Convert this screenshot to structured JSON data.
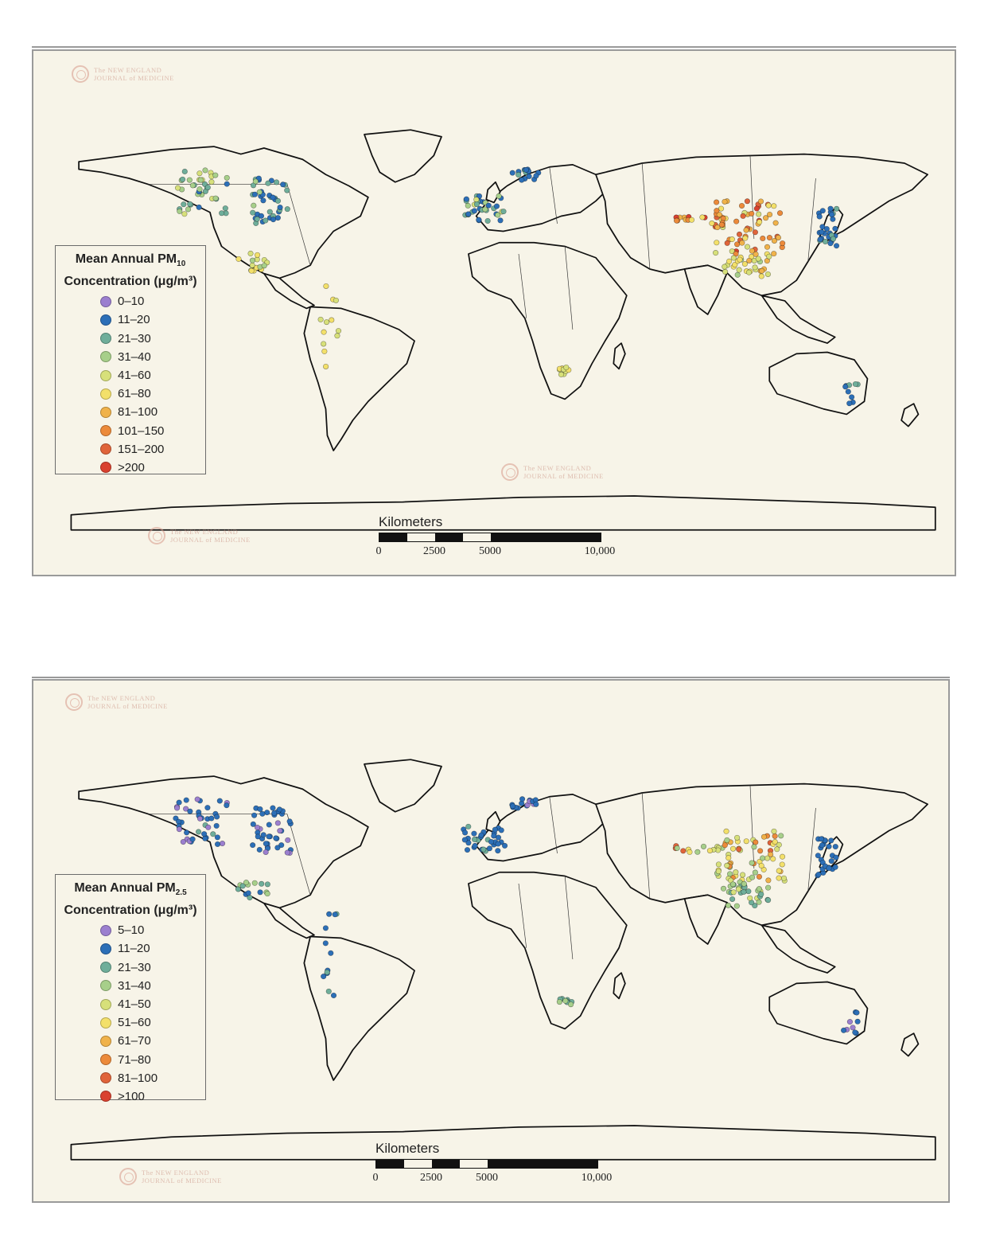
{
  "colors": {
    "background": "#f7f4e8",
    "coastline": "#111111",
    "classes": [
      "#9b7fcf",
      "#2c6fb7",
      "#6fae9a",
      "#a7cf8a",
      "#d7e07a",
      "#f3e06a",
      "#f0b24a",
      "#ec8a3a",
      "#e0643a",
      "#d9412f"
    ]
  },
  "logo": {
    "line1": "The NEW ENGLAND",
    "line2": "JOURNAL of MEDICINE"
  },
  "maps": [
    {
      "legend_title_line1": "Mean Annual PM",
      "legend_title_sub": "10",
      "legend_title_line2": "Concentration (μg/m³)",
      "legend_items": [
        "0–10",
        "11–20",
        "21–30",
        "31–40",
        "41–60",
        "61–80",
        "81–100",
        "101–150",
        "151–200",
        ">200"
      ],
      "scale": {
        "title": "Kilometers",
        "labels": [
          "0",
          "2500",
          "5000",
          "10,000"
        ]
      },
      "regions": [
        {
          "name": "western-us",
          "levels": [
            3,
            2,
            4,
            2,
            3,
            4,
            2,
            3,
            2,
            4,
            1,
            3,
            2,
            3
          ]
        },
        {
          "name": "eastern-us",
          "levels": [
            1,
            2,
            1,
            2,
            1,
            2,
            1,
            1,
            2,
            2,
            1,
            3,
            1,
            2
          ]
        },
        {
          "name": "mexico",
          "levels": [
            4,
            5,
            4,
            3,
            5
          ]
        },
        {
          "name": "south-america",
          "levels": [
            5,
            4,
            5,
            4
          ]
        },
        {
          "name": "western-europe",
          "levels": [
            1,
            2,
            1,
            3,
            2,
            1,
            2,
            4,
            1,
            2,
            3,
            1
          ]
        },
        {
          "name": "scandinavia",
          "levels": [
            1,
            1,
            1,
            2,
            1
          ]
        },
        {
          "name": "east-china",
          "levels": [
            8,
            7,
            6,
            8,
            9,
            7,
            6,
            5,
            7,
            8,
            6,
            4,
            7,
            8,
            6,
            5,
            7,
            6,
            8,
            7,
            4,
            5,
            6,
            7
          ]
        },
        {
          "name": "south-china",
          "levels": [
            5,
            4,
            6,
            5,
            4,
            3,
            5,
            4,
            6,
            4,
            5
          ]
        },
        {
          "name": "west-china",
          "levels": [
            6,
            9,
            7,
            5
          ]
        },
        {
          "name": "japan-korea",
          "levels": [
            1,
            1,
            1,
            2,
            1,
            1,
            2,
            1,
            1
          ]
        },
        {
          "name": "southern-africa",
          "levels": [
            4,
            5,
            4
          ]
        },
        {
          "name": "australia",
          "levels": [
            1,
            2,
            1
          ]
        }
      ]
    },
    {
      "legend_title_line1": "Mean Annual PM",
      "legend_title_sub": "2.5",
      "legend_title_line2": "Concentration (μg/m³)",
      "legend_items": [
        "5–10",
        "11–20",
        "21–30",
        "31–40",
        "41–50",
        "51–60",
        "61–70",
        "71–80",
        "81–100",
        ">100"
      ],
      "scale": {
        "title": "Kilometers",
        "labels": [
          "0",
          "2500",
          "5000",
          "10,000"
        ]
      },
      "regions": [
        {
          "name": "western-us",
          "levels": [
            1,
            0,
            1,
            1,
            0,
            1,
            2,
            1,
            0,
            1,
            1,
            0,
            1,
            1
          ]
        },
        {
          "name": "eastern-us",
          "levels": [
            1,
            1,
            0,
            1,
            1,
            1,
            1,
            0,
            1,
            1,
            1,
            1,
            1,
            0
          ]
        },
        {
          "name": "mexico",
          "levels": [
            2,
            3,
            2,
            1,
            3
          ]
        },
        {
          "name": "south-america",
          "levels": [
            1,
            2,
            1,
            1
          ]
        },
        {
          "name": "western-europe",
          "levels": [
            1,
            1,
            1,
            2,
            1,
            1,
            1,
            1,
            2,
            1,
            1,
            1
          ]
        },
        {
          "name": "scandinavia",
          "levels": [
            1,
            1,
            0,
            1,
            1
          ]
        },
        {
          "name": "east-china",
          "levels": [
            6,
            5,
            4,
            7,
            8,
            5,
            4,
            3,
            6,
            7,
            4,
            3,
            5,
            6,
            4,
            3,
            5,
            4,
            7,
            5,
            3,
            4,
            4,
            5
          ]
        },
        {
          "name": "south-china",
          "levels": [
            3,
            2,
            4,
            3,
            2,
            2,
            3,
            2,
            4,
            2,
            3
          ]
        },
        {
          "name": "west-china",
          "levels": [
            4,
            8,
            5,
            3
          ]
        },
        {
          "name": "japan-korea",
          "levels": [
            1,
            1,
            1,
            1,
            1,
            1,
            1,
            1,
            1
          ]
        },
        {
          "name": "southern-africa",
          "levels": [
            2,
            2,
            3
          ]
        },
        {
          "name": "australia",
          "levels": [
            1,
            0,
            1
          ]
        }
      ]
    }
  ]
}
